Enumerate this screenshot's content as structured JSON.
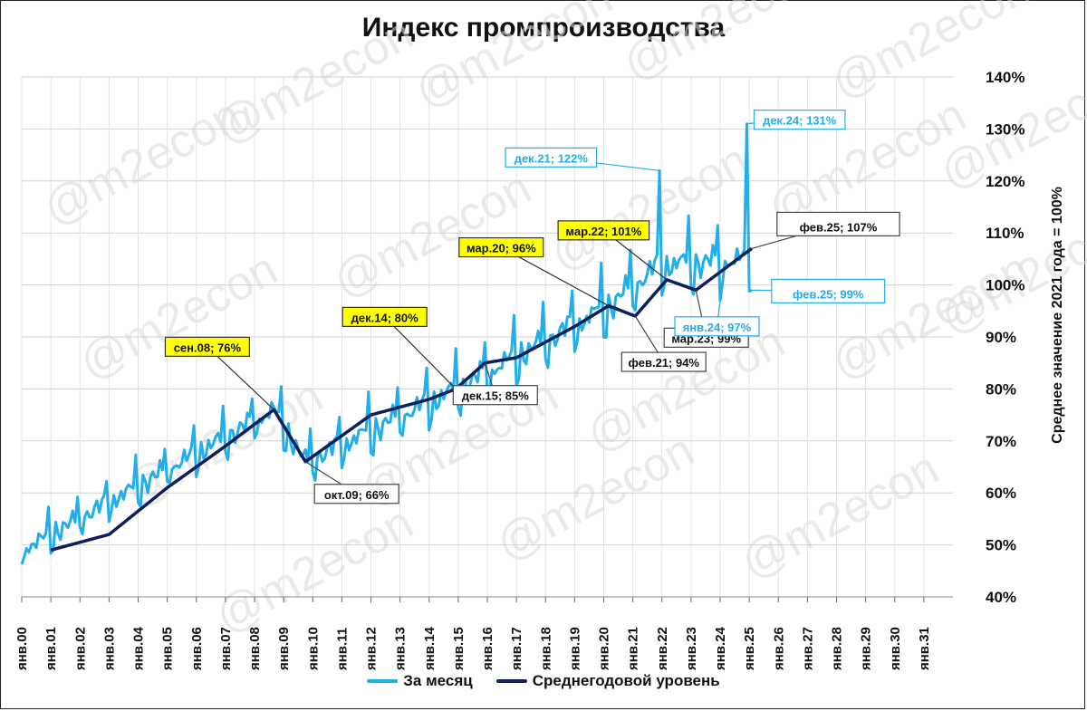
{
  "chart_data": {
    "type": "line",
    "title": "Индекс промпроизводства",
    "ylabel": "Среднее значение 2021 года = 100%",
    "ylim": [
      0.4,
      1.4
    ],
    "y_ticks": [
      "40%",
      "50%",
      "60%",
      "70%",
      "80%",
      "90%",
      "100%",
      "110%",
      "120%",
      "130%",
      "140%"
    ],
    "x_ticks": [
      "янв.00",
      "янв.01",
      "янв.02",
      "янв.03",
      "янв.04",
      "янв.05",
      "янв.06",
      "янв.07",
      "янв.08",
      "янв.09",
      "янв.10",
      "янв.11",
      "янв.12",
      "янв.13",
      "янв.14",
      "янв.15",
      "янв.16",
      "янв.17",
      "янв.18",
      "янв.19",
      "янв.20",
      "янв.21",
      "янв.22",
      "янв.23",
      "янв.24",
      "янв.25",
      "янв.26",
      "янв.27",
      "янв.28",
      "янв.29",
      "янв.30",
      "янв.31"
    ],
    "x_start": "янв.00",
    "series": [
      {
        "name": "За месяц",
        "color": "#22aee8",
        "frequency": "monthly",
        "seasonal_pattern": [
          -0.05,
          -0.05,
          0.01,
          -0.01,
          -0.02,
          0.0,
          0.0,
          0.01,
          0.0,
          0.02,
          0.01,
          0.08
        ],
        "trend_anchors": [
          [
            "янв.00",
            0.49
          ],
          [
            "сен.08",
            0.76
          ],
          [
            "окт.09",
            0.66
          ],
          [
            "дек.14",
            0.8
          ],
          [
            "мар.20",
            0.96
          ],
          [
            "дек.21",
            1.04
          ],
          [
            "фев.25",
            1.05
          ]
        ],
        "labeled_points": [
          {
            "label": "дек.21; 122%",
            "date": "дек.21",
            "value": 1.22
          },
          {
            "label": "дек.24; 131%",
            "date": "дек.24",
            "value": 1.31
          },
          {
            "label": "янв.24; 97%",
            "date": "янв.24",
            "value": 0.97
          },
          {
            "label": "фев.25; 99%",
            "date": "фев.25",
            "value": 0.99
          }
        ]
      },
      {
        "name": "Среднегодовой уровень",
        "color": "#0e1f5b",
        "frequency": "monthly",
        "anchors": [
          [
            "янв.01",
            0.49
          ],
          [
            "янв.03",
            0.52
          ],
          [
            "янв.05",
            0.61
          ],
          [
            "янв.07",
            0.69
          ],
          [
            "сен.08",
            0.76
          ],
          [
            "окт.09",
            0.66
          ],
          [
            "янв.12",
            0.75
          ],
          [
            "янв.14",
            0.78
          ],
          [
            "дек.14",
            0.8
          ],
          [
            "дек.15",
            0.85
          ],
          [
            "янв.17",
            0.86
          ],
          [
            "янв.19",
            0.92
          ],
          [
            "мар.20",
            0.96
          ],
          [
            "фев.21",
            0.94
          ],
          [
            "мар.22",
            1.01
          ],
          [
            "мар.23",
            0.99
          ],
          [
            "фев.25",
            1.07
          ]
        ],
        "labeled_points": [
          {
            "label": "сен.08; 76%",
            "date": "сен.08",
            "value": 0.76
          },
          {
            "label": "окт.09; 66%",
            "date": "окт.09",
            "value": 0.66
          },
          {
            "label": "дек.14; 80%",
            "date": "дек.14",
            "value": 0.8
          },
          {
            "label": "дек.15; 85%",
            "date": "дек.15",
            "value": 0.85
          },
          {
            "label": "мар.20; 96%",
            "date": "мар.20",
            "value": 0.96
          },
          {
            "label": "фев.21; 94%",
            "date": "фев.21",
            "value": 0.94
          },
          {
            "label": "мар.22; 101%",
            "date": "мар.22",
            "value": 1.01
          },
          {
            "label": "мар.23; 99%",
            "date": "мар.23",
            "value": 0.99
          },
          {
            "label": "фев.25; 107%",
            "date": "фев.25",
            "value": 1.07
          }
        ]
      }
    ],
    "watermark": "@m2econ",
    "grid": true
  },
  "legend": {
    "monthly": "За месяц",
    "annual": "Среднегодовой уровень"
  },
  "colors": {
    "monthly": "#22aee8",
    "annual": "#0e1f5b",
    "highlight_fill": "#ffff00",
    "callout_border": "#444444"
  }
}
